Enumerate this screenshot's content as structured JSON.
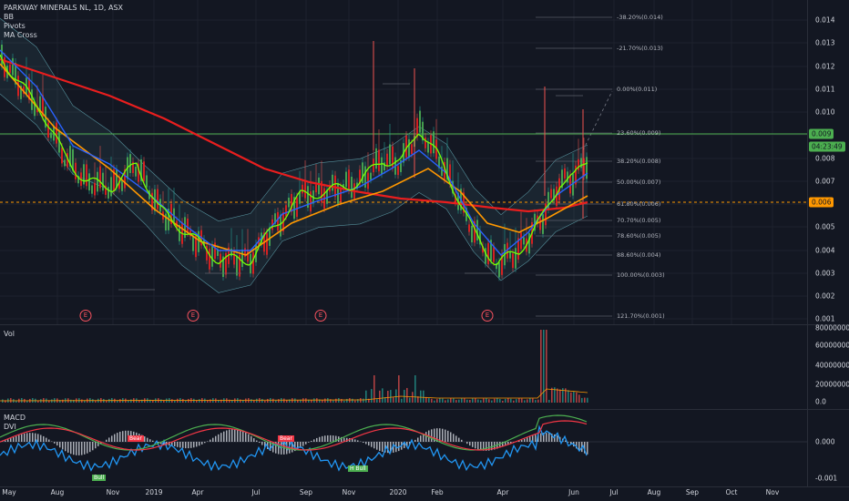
{
  "legend": {
    "title": "PARKWAY MINERALS NL, 1D, ASX",
    "indicators": [
      "BB",
      "Pivots",
      "MA Cross"
    ],
    "volume": "Vol",
    "macd": "MACD",
    "dvi": "DVI"
  },
  "price_axis": [
    "0.014",
    "0.013",
    "0.012",
    "0.011",
    "0.010",
    "0.008",
    "0.007",
    "0.005",
    "0.004",
    "0.003",
    "0.002",
    "0.001"
  ],
  "volume_axis": [
    "60000000.0",
    "40000000.0",
    "20000000.0",
    "0.0",
    "80000000.0"
  ],
  "macd_axis": [
    "0.000",
    "-0.001"
  ],
  "badges": {
    "last_price": "0.009",
    "countdown": "04:23:49",
    "orange_level": "0.006"
  },
  "fib_levels": [
    "-38.20%(0.014)",
    "-21.70%(0.013)",
    "0.00%(0.011)",
    "23.60%(0.009)",
    "38.20%(0.008)",
    "50.00%(0.007)",
    "61.80%(0.006)",
    "70.70%(0.005)",
    "78.60%(0.005)",
    "88.60%(0.004)",
    "100.00%(0.003)",
    "121.70%(0.001)"
  ],
  "earnings_marker": "E",
  "signals": [
    "Bull",
    "H Bull",
    "Bear",
    "Bear"
  ],
  "time_axis": [
    "May",
    "Aug",
    "Nov",
    "2019",
    "Apr",
    "Jul",
    "Sep",
    "Nov",
    "2020",
    "Feb",
    "Apr",
    "Jun",
    "Jul",
    "Aug",
    "Sep",
    "Oct",
    "Nov"
  ],
  "colors": {
    "background": "#131722",
    "ma_fast": "#4caf50",
    "ma_mid": "#2962ff",
    "ma_slow": "#ff9800",
    "ma_long": "#e91e1e",
    "bollinger": "#80deea",
    "last_price_line": "#4caf50",
    "orange_line": "#ff9800"
  }
}
